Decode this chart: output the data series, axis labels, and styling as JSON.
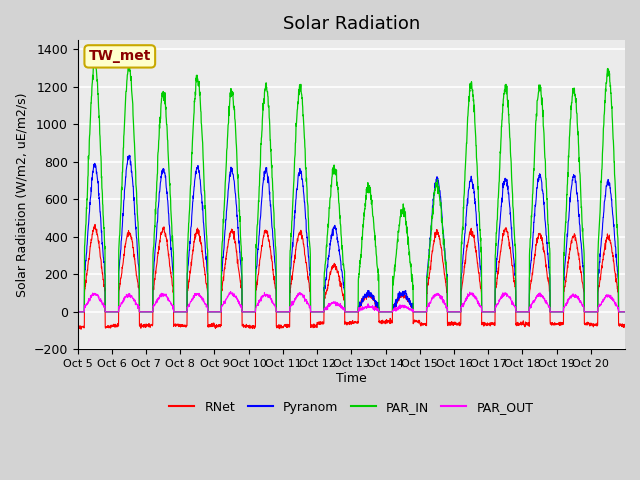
{
  "title": "Solar Radiation",
  "ylabel": "Solar Radiation (W/m2, uE/m2/s)",
  "xlabel": "Time",
  "n_days": 16,
  "ylim": [
    -200,
    1450
  ],
  "yticks": [
    -200,
    0,
    200,
    400,
    600,
    800,
    1000,
    1200,
    1400
  ],
  "x_tick_labels": [
    "Oct 5",
    "Oct 6",
    "Oct 7",
    "Oct 8",
    "Oct 9",
    "Oct 10",
    "Oct 11",
    "Oct 12",
    "Oct 13",
    "Oct 14",
    "Oct 15",
    "Oct 16",
    "Oct 17",
    "Oct 18",
    "Oct 19",
    "Oct 20"
  ],
  "site_label": "TW_met",
  "site_label_color": "#8B0000",
  "site_label_bg": "#FFFFCC",
  "site_label_border": "#C8A800",
  "colors": {
    "RNet": "#FF0000",
    "Pyranom": "#0000FF",
    "PAR_IN": "#00CC00",
    "PAR_OUT": "#FF00FF"
  },
  "legend_entries": [
    "RNet",
    "Pyranom",
    "PAR_IN",
    "PAR_OUT"
  ],
  "fig_bg_color": "#D3D3D3",
  "plot_bg_color": "#EBEBEB",
  "grid_color": "#FFFFFF",
  "title_fontsize": 13,
  "axis_fontsize": 9,
  "tick_fontsize": 9,
  "par_in_peaks": [
    1330,
    1310,
    1175,
    1250,
    1175,
    1200,
    1195,
    760,
    670,
    540,
    680,
    1210,
    1200,
    1200,
    1190,
    1290
  ],
  "pyranom_peaks": [
    780,
    825,
    760,
    770,
    755,
    755,
    750,
    450,
    100,
    100,
    710,
    710,
    710,
    725,
    720,
    695
  ],
  "rnet_peaks": [
    450,
    420,
    440,
    430,
    435,
    430,
    425,
    250,
    90,
    90,
    425,
    430,
    440,
    415,
    405,
    400
  ],
  "par_out_peaks": [
    95,
    90,
    95,
    95,
    100,
    95,
    95,
    50,
    30,
    30,
    95,
    95,
    95,
    90,
    90,
    85
  ],
  "rnet_night": [
    -80,
    -75,
    -70,
    -75,
    -75,
    -80,
    -75,
    -60,
    -55,
    -50,
    -65,
    -65,
    -65,
    -65,
    -65,
    -70
  ]
}
